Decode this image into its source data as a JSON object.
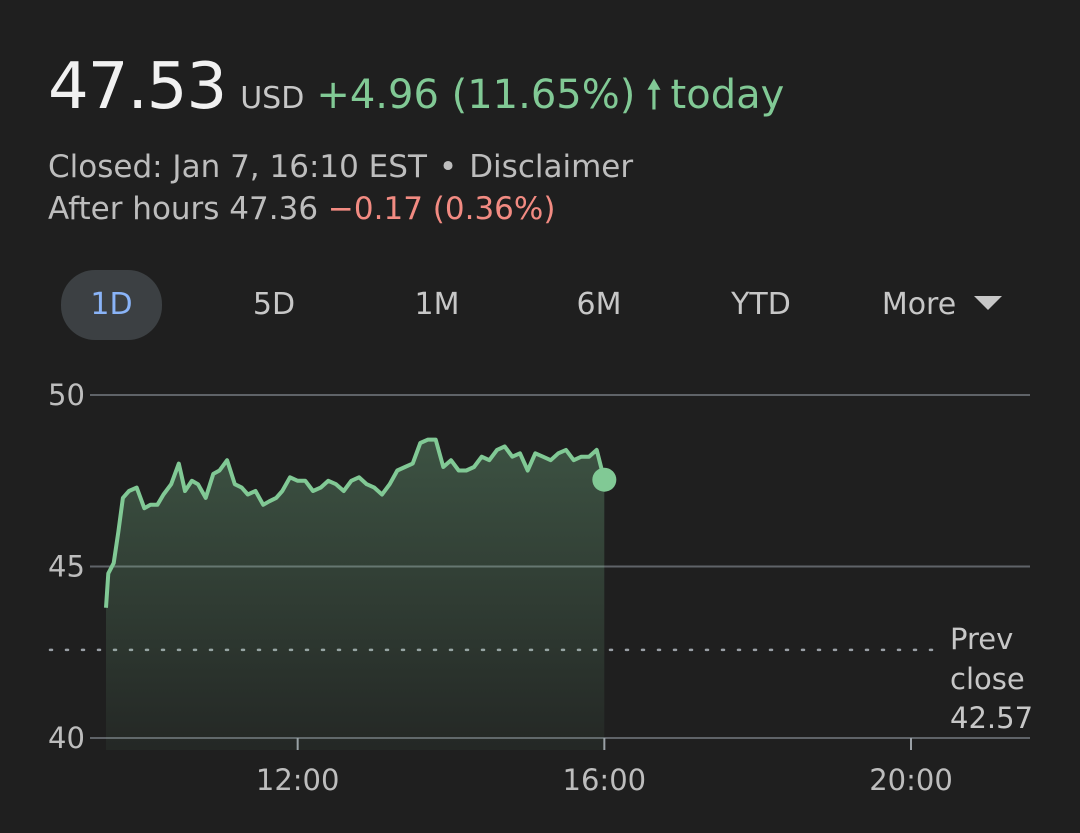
{
  "quote": {
    "price": "47.53",
    "currency": "USD",
    "change": "+4.96 (11.65%)",
    "arrow_icon": "arrow-up-icon",
    "period": "today",
    "status": "Closed: Jan 7, 16:10 EST",
    "separator": "•",
    "disclaimer": "Disclaimer",
    "after_hours_label": "After hours 47.36",
    "after_hours_change": "−0.17 (0.36%)"
  },
  "ranges": {
    "items": [
      "1D",
      "5D",
      "1M",
      "6M",
      "YTD"
    ],
    "more": "More",
    "active": "1D"
  },
  "colors": {
    "up": "#81c995",
    "down": "#f28b82",
    "active_tab": "#8ab4f8"
  },
  "chart_data": {
    "type": "area",
    "x_unit": "hour of day",
    "x_ticks": [
      12,
      16,
      20
    ],
    "x_tick_labels": [
      "12:00",
      "16:00",
      "20:00"
    ],
    "xlim": [
      9.5,
      21.5
    ],
    "y_ticks": [
      40,
      45,
      50
    ],
    "y_tick_labels": [
      "40",
      "45",
      "50"
    ],
    "ylim": [
      40,
      50
    ],
    "grid": true,
    "prev_close": 42.57,
    "prev_close_label": [
      "Prev",
      "close",
      "42.57"
    ],
    "last_point": {
      "x": 16.0,
      "y": 47.53
    },
    "series": [
      {
        "x": [
          9.5,
          9.53,
          9.6,
          9.66,
          9.72,
          9.8,
          9.9,
          10.0,
          10.08,
          10.17,
          10.25,
          10.35,
          10.45,
          10.53,
          10.62,
          10.7,
          10.8,
          10.9,
          10.98,
          11.08,
          11.18,
          11.27,
          11.35,
          11.45,
          11.55,
          11.63,
          11.72,
          11.8,
          11.9,
          12.0,
          12.1,
          12.2,
          12.3,
          12.4,
          12.5,
          12.6,
          12.7,
          12.8,
          12.9,
          13.0,
          13.1,
          13.2,
          13.3,
          13.4,
          13.5,
          13.6,
          13.7,
          13.8,
          13.9,
          14.0,
          14.1,
          14.2,
          14.3,
          14.4,
          14.5,
          14.6,
          14.7,
          14.8,
          14.9,
          15.0,
          15.1,
          15.2,
          15.3,
          15.4,
          15.5,
          15.6,
          15.7,
          15.8,
          15.9,
          16.0
        ],
        "y": [
          43.8,
          44.8,
          45.1,
          46.0,
          47.0,
          47.2,
          47.3,
          46.7,
          46.8,
          46.8,
          47.1,
          47.4,
          48.0,
          47.2,
          47.5,
          47.4,
          47.0,
          47.7,
          47.8,
          48.1,
          47.4,
          47.3,
          47.1,
          47.2,
          46.8,
          46.9,
          47.0,
          47.2,
          47.6,
          47.5,
          47.5,
          47.2,
          47.3,
          47.5,
          47.4,
          47.2,
          47.5,
          47.6,
          47.4,
          47.3,
          47.1,
          47.4,
          47.8,
          47.9,
          48.0,
          48.6,
          48.7,
          48.7,
          47.9,
          48.1,
          47.8,
          47.8,
          47.9,
          48.2,
          48.1,
          48.4,
          48.5,
          48.2,
          48.3,
          47.8,
          48.3,
          48.2,
          48.1,
          48.3,
          48.4,
          48.1,
          48.2,
          48.2,
          48.4,
          47.53
        ]
      }
    ]
  }
}
